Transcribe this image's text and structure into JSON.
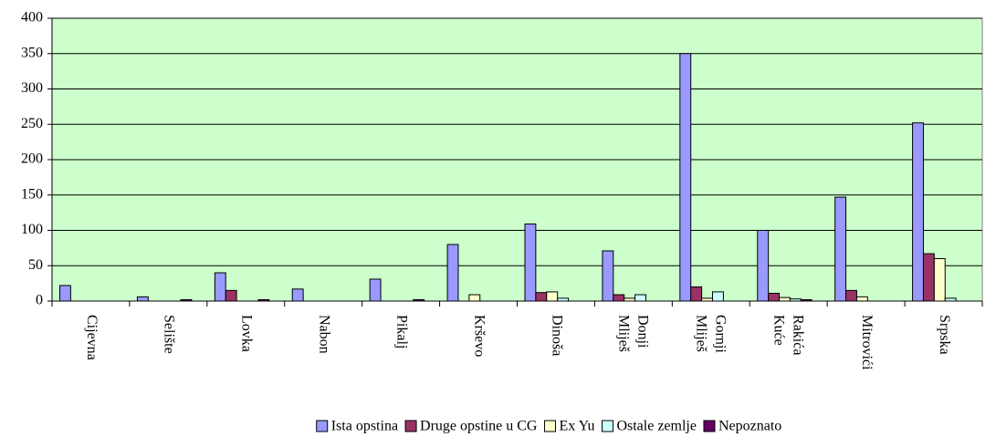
{
  "chart_data": {
    "type": "bar",
    "categories": [
      "Cijevna",
      "Selište",
      "Lovka",
      "Nabon",
      "Pikalj",
      "Krševo",
      "Dinoša",
      "Donji Mliješ",
      "Gornji Mliješ",
      "Rakića Kuće",
      "Mitrovići",
      "Srpska"
    ],
    "series": [
      {
        "name": "Ista opstina",
        "color": "#9999ff",
        "values": [
          22,
          6,
          40,
          17,
          31,
          80,
          109,
          71,
          350,
          100,
          147,
          252
        ]
      },
      {
        "name": "Druge opstine u CG",
        "color": "#993366",
        "values": [
          0,
          0,
          15,
          0,
          0,
          0,
          12,
          9,
          20,
          11,
          15,
          67
        ]
      },
      {
        "name": "Ex Yu",
        "color": "#ffffcc",
        "values": [
          0,
          0,
          0,
          0,
          0,
          9,
          13,
          4,
          4,
          5,
          6,
          60
        ]
      },
      {
        "name": "Ostale zemlje",
        "color": "#ccffff",
        "values": [
          0,
          0,
          0,
          0,
          0,
          0,
          4,
          9,
          13,
          3,
          0,
          4
        ]
      },
      {
        "name": "Nepoznato",
        "color": "#660066",
        "values": [
          0,
          2,
          2,
          0,
          2,
          0,
          0,
          0,
          0,
          2,
          0,
          0
        ]
      }
    ],
    "ylim": [
      0,
      400
    ],
    "yticks": [
      0,
      50,
      100,
      150,
      200,
      250,
      300,
      350,
      400
    ],
    "grid": true,
    "plot_background": "#ccffcc",
    "legend": "bottom"
  }
}
